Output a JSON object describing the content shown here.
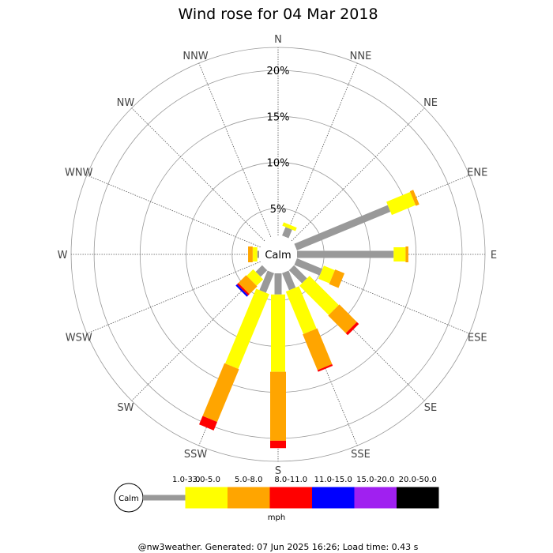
{
  "chart_data": {
    "type": "wind-rose",
    "title": "Wind rose for 04 Mar 2018",
    "directions": [
      "N",
      "NNE",
      "NE",
      "ENE",
      "E",
      "ESE",
      "SE",
      "SSE",
      "S",
      "SSW",
      "SW",
      "WSW",
      "W",
      "WNW",
      "NW",
      "NNW"
    ],
    "ring_labels": [
      "5%",
      "10%",
      "15%",
      "20%"
    ],
    "rmax": 22.5,
    "calm_label": "Calm",
    "units_label": "mph",
    "bins": [
      {
        "label": "1.0-3.0",
        "color": "#999999"
      },
      {
        "label": "3.0-5.0",
        "color": "#ffff00"
      },
      {
        "label": "5.0-8.0",
        "color": "#ffa500"
      },
      {
        "label": "8.0-11.0",
        "color": "#ff0000"
      },
      {
        "label": "11.0-15.0",
        "color": "#0000ff"
      },
      {
        "label": "15.0-20.0",
        "color": "#a020f0"
      },
      {
        "label": "20.0-50.0",
        "color": "#000000"
      }
    ],
    "series": [
      {
        "direction": "N",
        "values": [
          0,
          0,
          0,
          0,
          0,
          0,
          0
        ]
      },
      {
        "direction": "NNE",
        "values": [
          1.0,
          0.4,
          0,
          0,
          0,
          0,
          0
        ]
      },
      {
        "direction": "NE",
        "values": [
          0,
          0,
          0,
          0,
          0,
          0,
          0
        ]
      },
      {
        "direction": "ENE",
        "values": [
          11.0,
          2.8,
          0.4,
          0,
          0,
          0,
          0
        ]
      },
      {
        "direction": "E",
        "values": [
          10.5,
          1.3,
          0.3,
          0,
          0,
          0,
          0
        ]
      },
      {
        "direction": "ESE",
        "values": [
          3.0,
          1.3,
          1.1,
          0,
          0,
          0,
          0
        ]
      },
      {
        "direction": "SE",
        "values": [
          2.0,
          4.5,
          2.7,
          0.3,
          0,
          0,
          0
        ]
      },
      {
        "direction": "SSE",
        "values": [
          2.0,
          5.0,
          4.2,
          0.2,
          0,
          0,
          0
        ]
      },
      {
        "direction": "S",
        "values": [
          2.3,
          8.4,
          7.5,
          0.8,
          0,
          0,
          0
        ]
      },
      {
        "direction": "SSW",
        "values": [
          2.3,
          8.8,
          6.2,
          1.0,
          0,
          0,
          0
        ]
      },
      {
        "direction": "SW",
        "values": [
          1.0,
          1.0,
          1.2,
          0.2,
          0.2,
          0,
          0
        ]
      },
      {
        "direction": "WSW",
        "values": [
          0,
          0,
          0,
          0,
          0,
          0,
          0
        ]
      },
      {
        "direction": "W",
        "values": [
          0.2,
          0.5,
          0.5,
          0,
          0,
          0,
          0
        ]
      },
      {
        "direction": "WNW",
        "values": [
          0,
          0,
          0,
          0,
          0,
          0,
          0
        ]
      },
      {
        "direction": "NW",
        "values": [
          0,
          0,
          0,
          0,
          0,
          0,
          0
        ]
      },
      {
        "direction": "NNW",
        "values": [
          0,
          0,
          0,
          0,
          0,
          0,
          0
        ]
      }
    ]
  },
  "footer": "@nw3weather. Generated: 07 Jun 2025 16:26; Load time: 0.43 s"
}
